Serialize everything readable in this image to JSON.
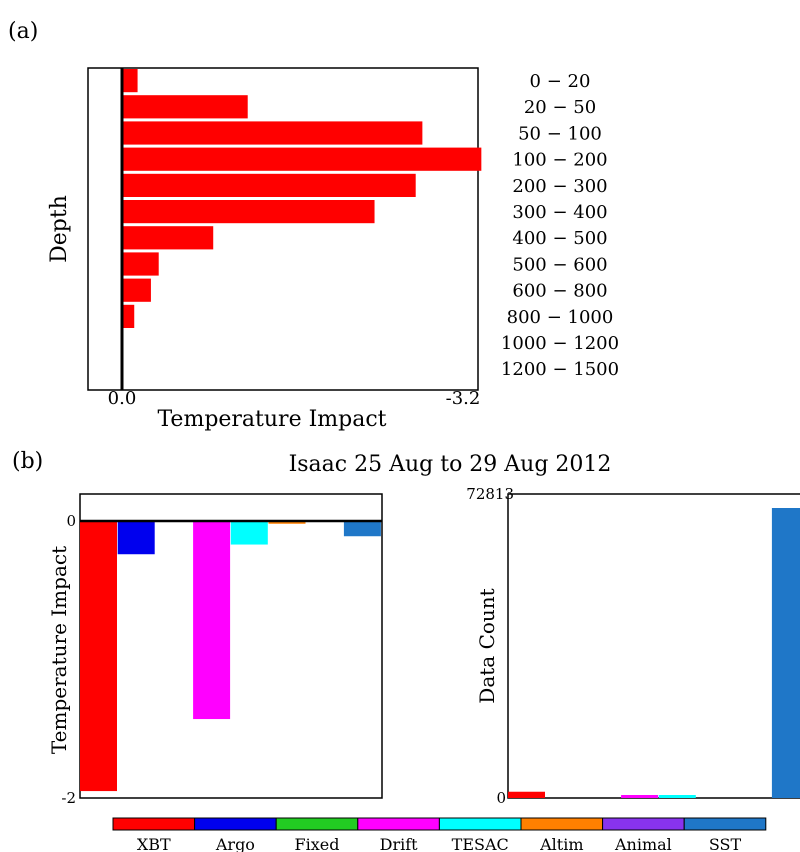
{
  "panel_a_label": "(a)",
  "panel_b_label": "(b)",
  "title": "Isaac  25 Aug to 29 Aug 2012",
  "colors": {
    "bar_a": "#ff0000",
    "axis": "#000000",
    "XBT": "#ff0000",
    "Argo": "#0000ee",
    "Fixed": "#22cc22",
    "Drift": "#ff00ff",
    "TESAC": "#00ffff",
    "Altim": "#ff8000",
    "Animal": "#8833ee",
    "SST": "#1f77c8"
  },
  "chart_data": [
    {
      "type": "bar",
      "orientation": "horizontal",
      "ylabel": "Depth",
      "xlabel": "Temperature Impact",
      "xlim": [
        0,
        -3.2
      ],
      "x_tick_labels": [
        "0.0",
        "-3.2"
      ],
      "categories": [
        "0  −    20",
        "20  −    50",
        "50  −  100",
        "100  −  200",
        "200  −  300",
        "300  −  400",
        "400  −  500",
        "500  −  600",
        "600  −  800",
        "800  − 1000",
        "1000  − 1200",
        "1200  − 1500"
      ],
      "values": [
        -0.14,
        -1.13,
        -2.7,
        -3.23,
        -2.64,
        -2.27,
        -0.82,
        -0.33,
        -0.26,
        -0.11,
        0,
        0
      ]
    },
    {
      "type": "bar",
      "ylabel": "Temperature Impact",
      "ylim": [
        -2,
        0
      ],
      "y_tick_labels": [
        "0",
        "-2"
      ],
      "categories": [
        "XBT",
        "Argo",
        "Fixed",
        "Drift",
        "TESAC",
        "Altim",
        "Animal",
        "SST"
      ],
      "values": [
        -1.95,
        -0.24,
        0,
        -1.43,
        -0.17,
        -0.02,
        0,
        -0.11
      ]
    },
    {
      "type": "bar",
      "ylabel": "Data Count",
      "ylim": [
        0,
        72813
      ],
      "y_tick_labels": [
        "0",
        "72813"
      ],
      "categories": [
        "XBT",
        "Argo",
        "Fixed",
        "Drift",
        "TESAC",
        "Altim",
        "Animal",
        "SST"
      ],
      "values": [
        1500,
        0,
        0,
        300,
        400,
        0,
        0,
        75000
      ]
    }
  ],
  "legend": [
    "XBT",
    "Argo",
    "Fixed",
    "Drift",
    "TESAC",
    "Altim",
    "Animal",
    "SST"
  ]
}
